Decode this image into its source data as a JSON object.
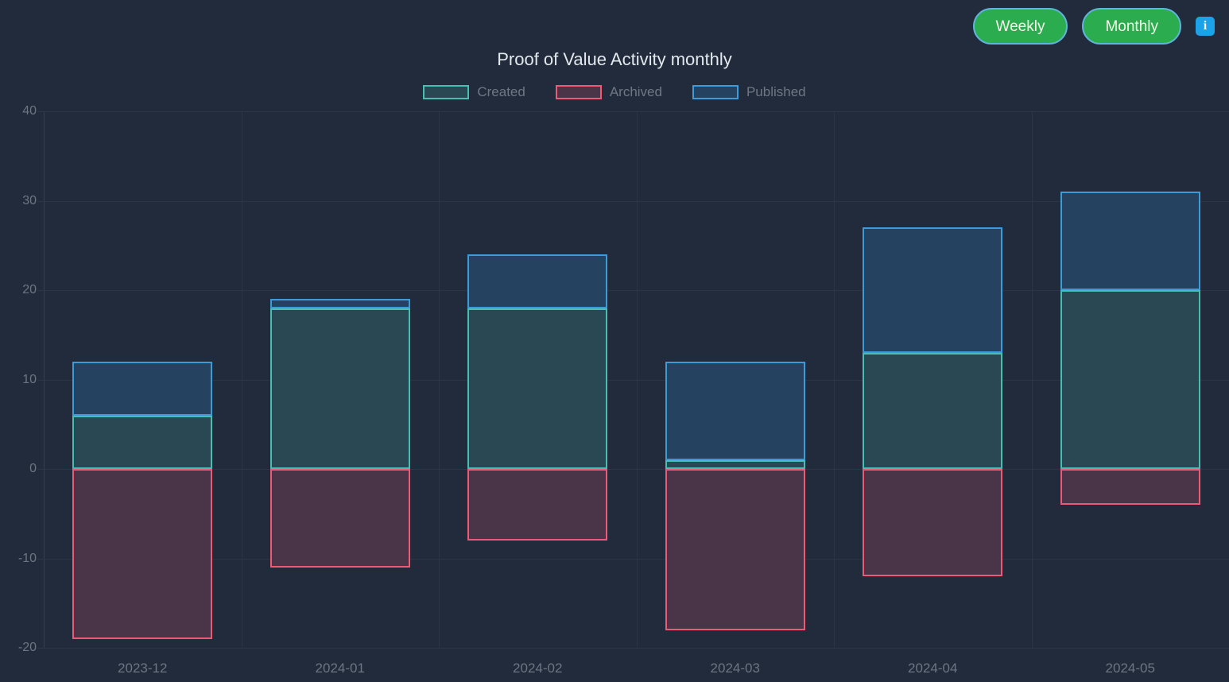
{
  "controls": {
    "weekly_label": "Weekly",
    "monthly_label": "Monthly"
  },
  "chart_data": {
    "type": "bar",
    "stacked": true,
    "title": "Proof of Value Activity monthly",
    "categories": [
      "2023-12",
      "2024-01",
      "2024-02",
      "2024-03",
      "2024-04",
      "2024-05"
    ],
    "series": [
      {
        "name": "Created",
        "color": "#48bdb2",
        "fill": "#2a4853",
        "values": [
          6,
          18,
          18,
          1,
          13,
          20
        ]
      },
      {
        "name": "Archived",
        "color": "#ee5a75",
        "fill": "#4a3447",
        "values": [
          -19,
          -11,
          -8,
          -18,
          -12,
          -4
        ]
      },
      {
        "name": "Published",
        "color": "#3c9bd8",
        "fill": "#254260",
        "values": [
          6,
          1,
          6,
          11,
          14,
          11
        ]
      }
    ],
    "stacked_totals_positive": [
      12,
      19,
      24,
      12,
      27,
      31
    ],
    "ylim": [
      -20,
      40
    ],
    "yticks": [
      40,
      30,
      20,
      10,
      0,
      -10,
      -20
    ],
    "grid": true,
    "legend_position": "top",
    "legend": [
      "Created",
      "Archived",
      "Published"
    ]
  },
  "colors": {
    "background": "#212b3b",
    "button_green": "#2bad4f",
    "button_border": "#5fb3dd",
    "info_blue": "#1ba2e8",
    "grid_line": "#2b3546",
    "axis_label_text": "#6c7682",
    "title_text": "#e3e8ed",
    "legend_text": "#6e7884"
  }
}
